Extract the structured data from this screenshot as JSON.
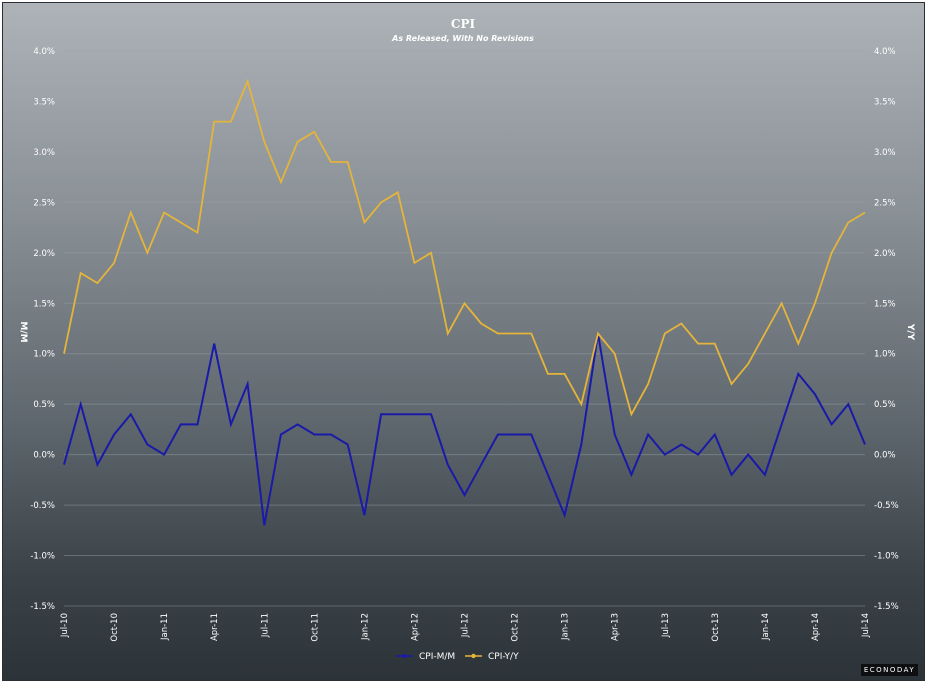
{
  "chart_data": {
    "type": "line",
    "title": "CPI",
    "subtitle": "As Released, With No Revisions",
    "ylabel_left": "M/M",
    "ylabel_right": "Y/Y",
    "ylim": [
      -1.5,
      4.0
    ],
    "y_ticks": [
      "4.0%",
      "3.5%",
      "3.0%",
      "2.5%",
      "2.0%",
      "1.5%",
      "1.0%",
      "0.5%",
      "0.0%",
      "-0.5%",
      "-1.0%",
      "-1.5%"
    ],
    "x_tick_labels": [
      "Jul-10",
      "Oct-10",
      "Jan-11",
      "Apr-11",
      "Jul-11",
      "Oct-11",
      "Jan-12",
      "Apr-12",
      "Jul-12",
      "Oct-12",
      "Jan-13",
      "Apr-13",
      "Jul-13",
      "Oct-13",
      "Jan-14",
      "Apr-14",
      "Jul-14"
    ],
    "x": [
      "Jul-10",
      "Aug-10",
      "Sep-10",
      "Oct-10",
      "Nov-10",
      "Dec-10",
      "Jan-11",
      "Feb-11",
      "Mar-11",
      "Apr-11",
      "May-11",
      "Jun-11",
      "Jul-11",
      "Aug-11",
      "Sep-11",
      "Oct-11",
      "Nov-11",
      "Dec-11",
      "Jan-12",
      "Feb-12",
      "Mar-12",
      "Apr-12",
      "May-12",
      "Jun-12",
      "Jul-12",
      "Aug-12",
      "Sep-12",
      "Oct-12",
      "Nov-12",
      "Dec-12",
      "Jan-13",
      "Feb-13",
      "Mar-13",
      "Apr-13",
      "May-13",
      "Jun-13",
      "Jul-13",
      "Aug-13",
      "Sep-13",
      "Oct-13",
      "Nov-13",
      "Dec-13",
      "Jan-14",
      "Feb-14",
      "Mar-14",
      "Apr-14",
      "May-14",
      "Jun-14",
      "Jul-14"
    ],
    "series": [
      {
        "name": "CPI-M/M",
        "color": "#1a1aa8",
        "values": [
          -0.1,
          0.5,
          -0.1,
          0.2,
          0.4,
          0.1,
          0.0,
          0.3,
          0.3,
          1.1,
          0.3,
          0.7,
          -0.7,
          0.2,
          0.3,
          0.2,
          0.2,
          0.1,
          -0.6,
          0.4,
          0.4,
          0.4,
          0.4,
          -0.1,
          -0.4,
          -0.1,
          0.2,
          0.2,
          0.2,
          -0.2,
          -0.6,
          0.1,
          1.2,
          0.2,
          -0.2,
          0.2,
          0.0,
          0.1,
          0.0,
          0.2,
          -0.2,
          0.0,
          -0.2,
          0.3,
          0.8,
          0.6,
          0.3,
          0.5,
          0.1
        ]
      },
      {
        "name": "CPI-Y/Y",
        "color": "#e5b43a",
        "values": [
          1.0,
          1.8,
          1.7,
          1.9,
          2.4,
          2.0,
          2.4,
          2.3,
          2.2,
          3.3,
          3.3,
          3.7,
          3.1,
          2.7,
          3.1,
          3.2,
          2.9,
          2.9,
          2.3,
          2.5,
          2.6,
          1.9,
          2.0,
          1.2,
          1.5,
          1.3,
          1.2,
          1.2,
          1.2,
          0.8,
          0.8,
          0.5,
          1.2,
          1.0,
          0.4,
          0.7,
          1.2,
          1.3,
          1.1,
          1.1,
          0.7,
          0.9,
          1.2,
          1.5,
          1.1,
          1.5,
          2.0,
          2.3,
          2.4
        ]
      }
    ],
    "legend": {
      "placement": "bottom-center",
      "entries": [
        "CPI-M/M",
        "CPI-Y/Y"
      ]
    },
    "grid": true
  },
  "watermark": "ECONODAY"
}
